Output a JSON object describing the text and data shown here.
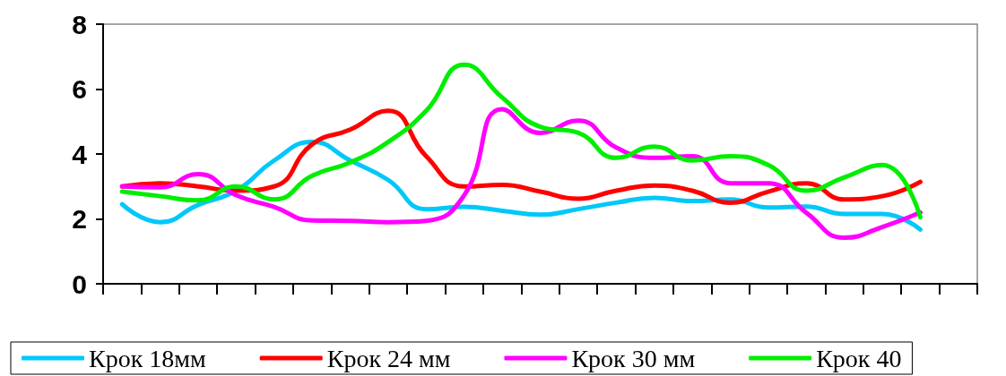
{
  "chart_data": {
    "type": "line",
    "categories": [
      null,
      null,
      null,
      null,
      null,
      null,
      null,
      null,
      null,
      null,
      null,
      null,
      null,
      null,
      null,
      null,
      null,
      null,
      null,
      null,
      null,
      null,
      null
    ],
    "series": [
      {
        "name": "Крок 18мм",
        "color": "#00c8f8",
        "values": [
          2.45,
          1.9,
          2.43,
          2.87,
          3.8,
          4.37,
          3.8,
          3.2,
          2.3,
          2.37,
          2.25,
          2.13,
          2.3,
          2.5,
          2.65,
          2.55,
          2.6,
          2.35,
          2.38,
          2.15,
          2.15,
          1.67,
          null
        ]
      },
      {
        "name": "Крок 24 мм",
        "color": "#ff0000",
        "values": [
          3.0,
          3.1,
          3.0,
          2.87,
          3.0,
          4.3,
          4.75,
          5.33,
          3.93,
          3.0,
          3.05,
          2.84,
          2.62,
          2.87,
          3.03,
          2.87,
          2.5,
          2.84,
          3.1,
          2.6,
          2.7,
          3.14,
          null
        ]
      },
      {
        "name": "Крок 30 мм",
        "color": "#ff00ff",
        "values": [
          3.0,
          2.97,
          3.38,
          2.73,
          2.37,
          1.95,
          1.94,
          1.9,
          1.94,
          2.73,
          5.38,
          4.65,
          5.03,
          4.2,
          3.88,
          3.93,
          3.1,
          3.1,
          2.19,
          1.42,
          1.75,
          2.2,
          null
        ]
      },
      {
        "name": "Крок 40",
        "color": "#00ee00",
        "values": [
          2.84,
          2.7,
          2.57,
          3.0,
          2.6,
          3.33,
          3.74,
          4.37,
          5.33,
          6.75,
          5.74,
          4.84,
          4.65,
          3.88,
          4.23,
          3.8,
          3.93,
          3.66,
          2.87,
          3.28,
          3.66,
          2.05,
          null
        ]
      }
    ],
    "ylim": [
      0,
      8
    ],
    "yticks": [
      0,
      2,
      4,
      6,
      8
    ],
    "grid": false,
    "legend": "bottom",
    "tick_labels": "y",
    "marker": "none",
    "line_style": "solid"
  }
}
